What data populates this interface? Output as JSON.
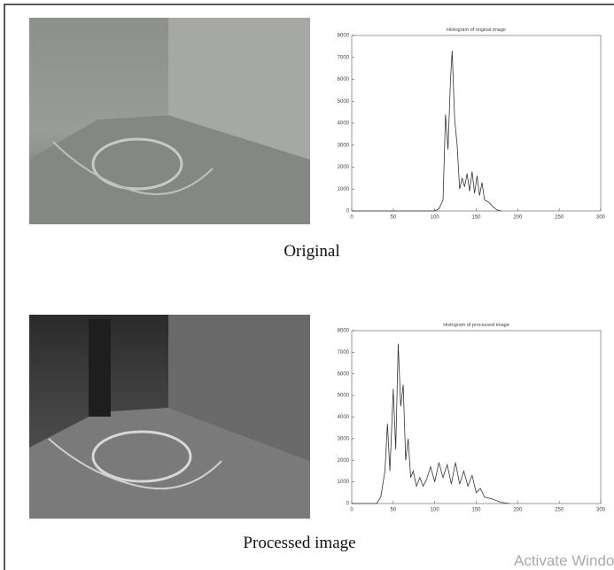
{
  "chart_data": [
    {
      "type": "line",
      "title": "Histogram of original image",
      "color": "#333333",
      "x": [
        0,
        100,
        105,
        110,
        113,
        116,
        119,
        121,
        124,
        127,
        130,
        133,
        136,
        139,
        142,
        145,
        148,
        151,
        154,
        157,
        160,
        165,
        170,
        175,
        180
      ],
      "values": [
        0,
        0,
        100,
        500,
        4400,
        2800,
        6000,
        7300,
        4200,
        3000,
        1000,
        1500,
        1100,
        1700,
        900,
        1800,
        800,
        1600,
        700,
        1300,
        500,
        400,
        200,
        50,
        0
      ],
      "xlim": [
        0,
        300
      ],
      "xticks": [
        0,
        50,
        100,
        150,
        200,
        250,
        300
      ],
      "ylim": [
        0,
        8000
      ],
      "yticks": [
        0,
        1000,
        2000,
        3000,
        4000,
        5000,
        6000,
        7000,
        8000
      ]
    },
    {
      "type": "line",
      "title": "Histogram of processed image",
      "color": "#333333",
      "x": [
        0,
        30,
        35,
        40,
        43,
        46,
        50,
        53,
        56,
        59,
        62,
        65,
        68,
        71,
        74,
        78,
        82,
        86,
        90,
        95,
        100,
        105,
        110,
        115,
        120,
        125,
        130,
        135,
        140,
        145,
        150,
        155,
        160,
        170,
        180,
        190
      ],
      "values": [
        0,
        0,
        300,
        1500,
        3700,
        1500,
        5300,
        2500,
        7400,
        4500,
        5500,
        2000,
        3000,
        1200,
        1500,
        800,
        1200,
        800,
        1100,
        1700,
        1000,
        1900,
        1200,
        1800,
        900,
        1900,
        900,
        1500,
        800,
        1300,
        500,
        700,
        300,
        200,
        50,
        0
      ],
      "xlim": [
        0,
        300
      ],
      "xticks": [
        0,
        50,
        100,
        150,
        200,
        250,
        300
      ],
      "ylim": [
        0,
        8000
      ],
      "yticks": [
        0,
        1000,
        2000,
        3000,
        4000,
        5000,
        6000,
        7000,
        8000
      ]
    }
  ],
  "captions": [
    "Original",
    "Processed image"
  ],
  "watermark": "Activate Windo"
}
